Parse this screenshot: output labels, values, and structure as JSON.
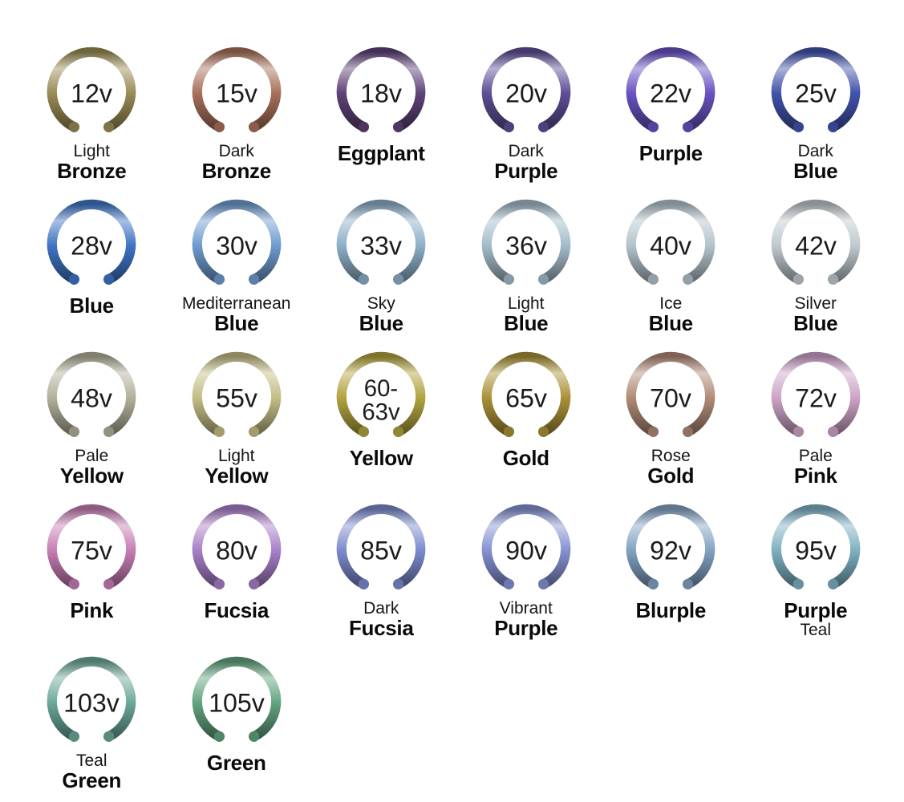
{
  "chart_title": "",
  "legend": {
    "unit_suffix": "v",
    "description": "anodized color voltage chart"
  },
  "items": [
    {
      "voltage_lines": [
        "12v"
      ],
      "name_lines": [
        {
          "text": "Light",
          "bold": false
        },
        {
          "text": "Bronze",
          "bold": true
        }
      ],
      "color": "#9a8c55"
    },
    {
      "voltage_lines": [
        "15v"
      ],
      "name_lines": [
        {
          "text": "Dark",
          "bold": false
        },
        {
          "text": "Bronze",
          "bold": true
        }
      ],
      "color": "#a8705a"
    },
    {
      "voltage_lines": [
        "18v"
      ],
      "name_lines": [
        {
          "text": "Eggplant",
          "bold": true
        }
      ],
      "color": "#5e4378"
    },
    {
      "voltage_lines": [
        "20v"
      ],
      "name_lines": [
        {
          "text": "Dark",
          "bold": false
        },
        {
          "text": "Purple",
          "bold": true
        }
      ],
      "color": "#5e4e96"
    },
    {
      "voltage_lines": [
        "22v"
      ],
      "name_lines": [
        {
          "text": "Purple",
          "bold": true
        }
      ],
      "color": "#6a52c2"
    },
    {
      "voltage_lines": [
        "25v"
      ],
      "name_lines": [
        {
          "text": "Dark",
          "bold": false
        },
        {
          "text": "Blue",
          "bold": true
        }
      ],
      "color": "#4153ab"
    },
    {
      "voltage_lines": [
        "28v"
      ],
      "name_lines": [
        {
          "text": "Blue",
          "bold": true
        }
      ],
      "color": "#3f74c4"
    },
    {
      "voltage_lines": [
        "30v"
      ],
      "name_lines": [
        {
          "text": "Mediterranean",
          "bold": false
        },
        {
          "text": "Blue",
          "bold": true
        }
      ],
      "color": "#6f9bd0"
    },
    {
      "voltage_lines": [
        "33v"
      ],
      "name_lines": [
        {
          "text": "Sky",
          "bold": false
        },
        {
          "text": "Blue",
          "bold": true
        }
      ],
      "color": "#8db0c8"
    },
    {
      "voltage_lines": [
        "36v"
      ],
      "name_lines": [
        {
          "text": "Light",
          "bold": false
        },
        {
          "text": "Blue",
          "bold": true
        }
      ],
      "color": "#a4bcca"
    },
    {
      "voltage_lines": [
        "40v"
      ],
      "name_lines": [
        {
          "text": "Ice",
          "bold": false
        },
        {
          "text": "Blue",
          "bold": true
        }
      ],
      "color": "#b4c3cc"
    },
    {
      "voltage_lines": [
        "42v"
      ],
      "name_lines": [
        {
          "text": "Silver",
          "bold": false
        },
        {
          "text": "Blue",
          "bold": true
        }
      ],
      "color": "#bfc9cf"
    },
    {
      "voltage_lines": [
        "48v"
      ],
      "name_lines": [
        {
          "text": "Pale",
          "bold": false
        },
        {
          "text": "Yellow",
          "bold": true
        }
      ],
      "color": "#b3b09a"
    },
    {
      "voltage_lines": [
        "55v"
      ],
      "name_lines": [
        {
          "text": "Light",
          "bold": false
        },
        {
          "text": "Yellow",
          "bold": true
        }
      ],
      "color": "#c4bd85"
    },
    {
      "voltage_lines": [
        "60-",
        "63v"
      ],
      "name_lines": [
        {
          "text": "Yellow",
          "bold": true
        }
      ],
      "color": "#b1a33f"
    },
    {
      "voltage_lines": [
        "65v"
      ],
      "name_lines": [
        {
          "text": "Gold",
          "bold": true
        }
      ],
      "color": "#aa9138"
    },
    {
      "voltage_lines": [
        "70v"
      ],
      "name_lines": [
        {
          "text": "Rose",
          "bold": false
        },
        {
          "text": "Gold",
          "bold": true
        }
      ],
      "color": "#b18a76"
    },
    {
      "voltage_lines": [
        "72v"
      ],
      "name_lines": [
        {
          "text": "Pale",
          "bold": false
        },
        {
          "text": "Pink",
          "bold": true
        }
      ],
      "color": "#cda3c8"
    },
    {
      "voltage_lines": [
        "75v"
      ],
      "name_lines": [
        {
          "text": "Pink",
          "bold": true
        }
      ],
      "color": "#c77eb4"
    },
    {
      "voltage_lines": [
        "80v"
      ],
      "name_lines": [
        {
          "text": "Fucsia",
          "bold": true
        }
      ],
      "color": "#a87fc8"
    },
    {
      "voltage_lines": [
        "85v"
      ],
      "name_lines": [
        {
          "text": "Dark",
          "bold": false
        },
        {
          "text": "Fucsia",
          "bold": true
        }
      ],
      "color": "#7c8bce"
    },
    {
      "voltage_lines": [
        "90v"
      ],
      "name_lines": [
        {
          "text": "Vibrant",
          "bold": false
        },
        {
          "text": "Purple",
          "bold": true
        }
      ],
      "color": "#8592d2"
    },
    {
      "voltage_lines": [
        "92v"
      ],
      "name_lines": [
        {
          "text": "Blurple",
          "bold": true
        }
      ],
      "color": "#82a2c2"
    },
    {
      "voltage_lines": [
        "95v"
      ],
      "name_lines": [
        {
          "text": "Purple",
          "bold": true
        },
        {
          "text": "Teal",
          "bold": false
        }
      ],
      "color": "#7eb1c2"
    },
    {
      "voltage_lines": [
        "103v"
      ],
      "name_lines": [
        {
          "text": "Teal",
          "bold": false
        },
        {
          "text": "Green",
          "bold": true
        }
      ],
      "color": "#6ca89a"
    },
    {
      "voltage_lines": [
        "105v"
      ],
      "name_lines": [
        {
          "text": "Green",
          "bold": true
        }
      ],
      "color": "#62a47f"
    }
  ]
}
